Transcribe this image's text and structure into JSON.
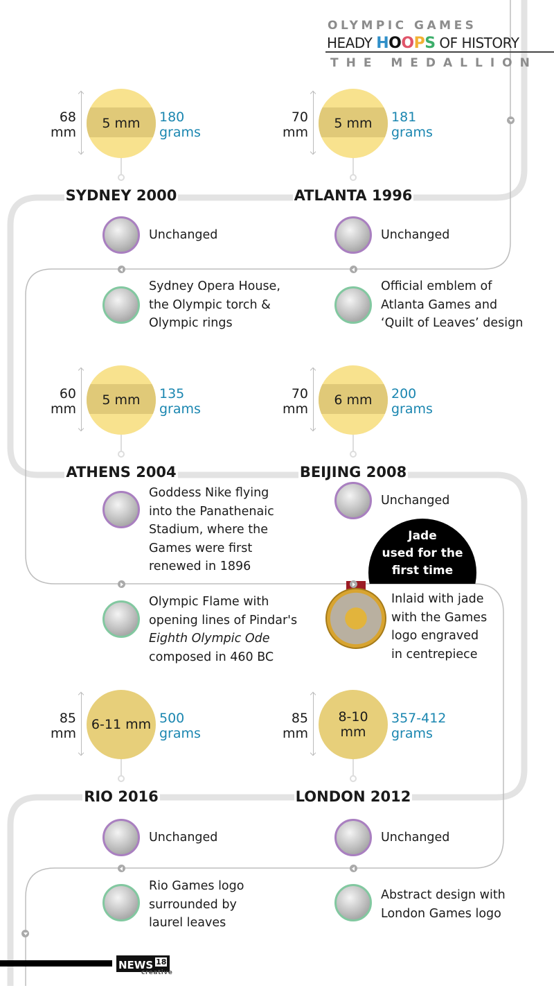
{
  "header": {
    "line1": "OLYMPIC GAMES",
    "line2_pre": "HEADY",
    "hoops": [
      {
        "ch": "H",
        "color": "#2f8fc8"
      },
      {
        "ch": "O",
        "color": "#111111"
      },
      {
        "ch": "O",
        "color": "#e0556a"
      },
      {
        "ch": "P",
        "color": "#f2b134"
      },
      {
        "ch": "S",
        "color": "#3cae6a"
      }
    ],
    "line2_post": "OF HISTORY",
    "line3": "THE MEDALLION"
  },
  "entries": [
    {
      "title": "SYDNEY 2000",
      "diameter": [
        "68",
        "mm"
      ],
      "thickness": "5 mm",
      "weight": [
        "180",
        "grams"
      ],
      "front": "Unchanged",
      "back": [
        "Sydney Opera House,",
        "the Olympic torch &",
        "Olympic rings"
      ]
    },
    {
      "title": "ATLANTA 1996",
      "diameter": [
        "70",
        "mm"
      ],
      "thickness": "5 mm",
      "weight": [
        "181",
        "grams"
      ],
      "front": "Unchanged",
      "back": [
        "Official emblem of",
        "Atlanta Games and",
        "‘Quilt of Leaves’ design"
      ]
    },
    {
      "title": "ATHENS 2004",
      "diameter": [
        "60",
        "mm"
      ],
      "thickness": "5 mm",
      "weight": [
        "135",
        "grams"
      ],
      "front": [
        "Goddess Nike flying",
        "into the Panathenaic",
        "Stadium, where the",
        "Games were first",
        "renewed in 1896"
      ],
      "back": [
        "Olympic Flame with",
        "opening lines of Pindar's",
        "Eighth Olympic Ode",
        "composed in 460 BC"
      ]
    },
    {
      "title": "BEIJING 2008",
      "diameter": [
        "70",
        "mm"
      ],
      "thickness": "6 mm",
      "weight": [
        "200",
        "grams"
      ],
      "front": "Unchanged",
      "callout": [
        "Jade",
        "used for the",
        "first time"
      ],
      "back": [
        "Inlaid with jade",
        "with the Games",
        "logo engraved",
        "in centrepiece"
      ]
    },
    {
      "title": "RIO 2016",
      "diameter": [
        "85",
        "mm"
      ],
      "thickness": "6-11 mm",
      "weight": [
        "500",
        "grams"
      ],
      "front": "Unchanged",
      "back": [
        "Rio Games logo",
        "surrounded by",
        "laurel leaves"
      ]
    },
    {
      "title": "LONDON 2012",
      "diameter": [
        "85",
        "mm"
      ],
      "thickness": [
        "8-10",
        "mm"
      ],
      "weight": [
        "357-412",
        "grams"
      ],
      "front": "Unchanged",
      "back": [
        "Abstract design with",
        "London Games logo"
      ]
    }
  ],
  "footer": {
    "brand": "NEWS",
    "brand_num": "18",
    "sub": "creative"
  },
  "colors": {
    "weight": "#1a86b0",
    "disc": "#f8e28e",
    "band": "#e0c978",
    "front_border": "#a97fc0",
    "back_border": "#82c8a0"
  }
}
